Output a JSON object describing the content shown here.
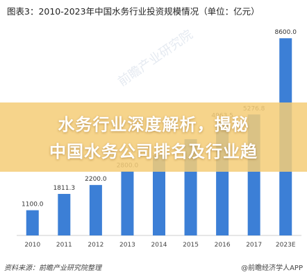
{
  "chart_data": {
    "type": "bar",
    "title": "图表3：2010-2023年中国水务行业投资规模情况（单位：亿元）",
    "categories": [
      "2010",
      "2011",
      "2012",
      "2013",
      "2014",
      "2015",
      "2016",
      "2017",
      "2023E"
    ],
    "values": [
      1100.0,
      1811.3,
      2200.0,
      2800.0,
      3500.0,
      4200.0,
      4963.5,
      5276.8,
      8600.0
    ],
    "labels": [
      "1100.0",
      "1811.3",
      "2200.0",
      "2800.0",
      "",
      "",
      "4963.5",
      "5276.8",
      "8600.0"
    ],
    "ylim": [
      0,
      9000
    ],
    "bar_color": "#3c7fd6",
    "grid": false
  },
  "banner": {
    "line1": "水务行业深度解析，揭秘",
    "line2": "中国水务公司排名及行业趋"
  },
  "watermark": "前瞻产业研究院",
  "footer": {
    "source": "资料来源：前瞻产业研究院整理",
    "credit": "@前瞻经济学人APP"
  }
}
